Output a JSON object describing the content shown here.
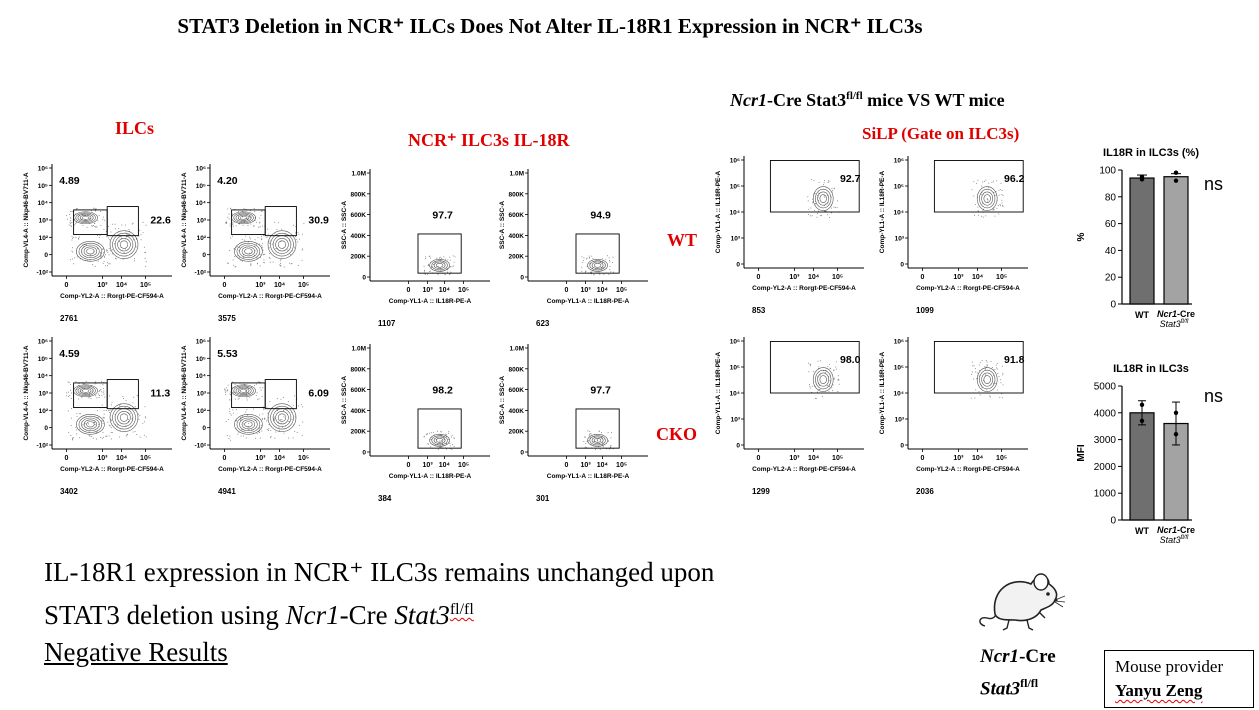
{
  "title": "STAT3 Deletion in NCR⁺ ILCs Does Not Alter IL-18R1 Expression in NCR⁺ ILC3s",
  "labels": {
    "ilcs": "ILCs",
    "ncr_il18r": "NCR⁺ ILC3s  IL-18R",
    "comparison_a": "Ncr1",
    "comparison_b": "-Cre Stat3",
    "comparison_sup": "fl/fl",
    "comparison_c": " mice VS WT mice",
    "silp": "SiLP (Gate on ILC3s)",
    "wt": "WT",
    "cko": "CKO"
  },
  "flow_panels": [
    {
      "id": "ilc-wt-1",
      "ylabel": "Comp-VL4-A :: Nkp46-BV711-A",
      "xlabel": "Comp-YL2-A :: Rorgt-PE-CF594-A",
      "count": "2761",
      "gates": [
        "4.89",
        "22.6"
      ]
    },
    {
      "id": "ilc-wt-2",
      "ylabel": "Comp-VL4-A :: Nkp46-BV711-A",
      "xlabel": "Comp-YL2-A :: Rorgt-PE-CF594-A",
      "count": "3575",
      "gates": [
        "4.20",
        "30.9"
      ]
    },
    {
      "id": "ilc-cko-1",
      "ylabel": "Comp-VL4-A :: Nkp46-BV711-A",
      "xlabel": "Comp-YL2-A :: Rorgt-PE-CF594-A",
      "count": "3402",
      "gates": [
        "4.59",
        "11.3"
      ]
    },
    {
      "id": "ilc-cko-2",
      "ylabel": "Comp-VL4-A :: Nkp46-BV711-A",
      "xlabel": "Comp-YL2-A :: Rorgt-PE-CF594-A",
      "count": "4941",
      "gates": [
        "5.53",
        "6.09"
      ]
    },
    {
      "id": "ncr-wt-1",
      "ylabel": "SSC-A :: SSC-A",
      "xlabel": "Comp-YL1-A :: IL18R-PE-A",
      "count": "1107",
      "gates": [
        "97.7"
      ]
    },
    {
      "id": "ncr-wt-2",
      "ylabel": "SSC-A :: SSC-A",
      "xlabel": "Comp-YL1-A :: IL18R-PE-A",
      "count": "623",
      "gates": [
        "94.9"
      ]
    },
    {
      "id": "ncr-cko-1",
      "ylabel": "SSC-A :: SSC-A",
      "xlabel": "Comp-YL1-A :: IL18R-PE-A",
      "count": "384",
      "gates": [
        "98.2"
      ]
    },
    {
      "id": "ncr-cko-2",
      "ylabel": "SSC-A :: SSC-A",
      "xlabel": "Comp-YL1-A :: IL18R-PE-A",
      "count": "301",
      "gates": [
        "97.7"
      ]
    },
    {
      "id": "silp-wt-1",
      "ylabel": "Comp-YL1-A :: IL18R-PE-A",
      "xlabel": "Comp-YL2-A :: Rorgt-PE-CF594-A",
      "count": "853",
      "gates": [
        "92.7"
      ]
    },
    {
      "id": "silp-wt-2",
      "ylabel": "Comp-YL1-A :: IL18R-PE-A",
      "xlabel": "Comp-YL2-A :: Rorgt-PE-CF594-A",
      "count": "1099",
      "gates": [
        "96.2"
      ]
    },
    {
      "id": "silp-cko-1",
      "ylabel": "Comp-YL1-A :: IL18R-PE-A",
      "xlabel": "Comp-YL2-A :: Rorgt-PE-CF594-A",
      "count": "1299",
      "gates": [
        "98.0"
      ]
    },
    {
      "id": "silp-cko-2",
      "ylabel": "Comp-YL1-A :: IL18R-PE-A",
      "xlabel": "Comp-YL2-A :: Rorgt-PE-CF594-A",
      "count": "2036",
      "gates": [
        "91.8"
      ]
    }
  ],
  "axis_ticks": {
    "log_rorgt": [
      "0",
      "10³",
      "10⁴",
      "10⁵"
    ],
    "log_nkp": [
      "10⁶",
      "10⁵",
      "10⁴",
      "10³",
      "10²",
      "0",
      "-10²"
    ],
    "ssc": [
      "1.0M",
      "800K",
      "600K",
      "400K",
      "200K",
      "0"
    ],
    "log_il18r_x": [
      "0",
      "10³",
      "10⁴",
      "10⁵"
    ],
    "log_il18r_y": [
      "10⁶",
      "10⁵",
      "10⁴",
      "10³",
      "0"
    ]
  },
  "chart_data": [
    {
      "type": "bar",
      "title": "IL18R in ILC3s (%)",
      "ylabel": "%",
      "ylim": [
        0,
        100
      ],
      "yticks": [
        "0",
        "20",
        "40",
        "60",
        "80",
        "100"
      ],
      "categories": [
        "WT",
        "Ncr1-Cre Stat3fl/fl"
      ],
      "values": [
        94,
        95
      ],
      "points": [
        [
          95,
          93
        ],
        [
          98,
          92
        ]
      ],
      "annotation": "ns"
    },
    {
      "type": "bar",
      "title": "IL18R in ILC3s",
      "ylabel": "MFI",
      "ylim": [
        0,
        5000
      ],
      "yticks": [
        "0",
        "1000",
        "2000",
        "3000",
        "4000",
        "5000"
      ],
      "categories": [
        "WT",
        "Ncr1-Cre Stat3fl/fl"
      ],
      "values": [
        4000,
        3600
      ],
      "points": [
        [
          4300,
          3700
        ],
        [
          4000,
          3200
        ]
      ],
      "errors": [
        450,
        800
      ],
      "annotation": "ns"
    }
  ],
  "bar_cat_labels": {
    "wt": "WT",
    "cko_a": "Ncr1",
    "cko_b": "-Cre",
    "cko_c": "Stat3",
    "cko_sup": "fl/fl"
  },
  "summary": {
    "line1": "IL-18R1 expression in NCR⁺ ILC3s remains unchanged upon",
    "line2a": "STAT3 deletion using ",
    "line2b": "Ncr1",
    "line2c": "-Cre ",
    "line2d": "Stat3",
    "line2sup": "fl/fl",
    "line3": "Negative Results"
  },
  "mouse_label": {
    "a": "Ncr1",
    "b": "-Cre",
    "c": "Stat3",
    "sup": "fl/fl"
  },
  "provider": {
    "label": "Mouse provider",
    "name": "Yanyu Zeng"
  },
  "colors": {
    "accent_red": "#e00000",
    "bar_wt": "#6f6f6f",
    "bar_cko": "#a3a3a3"
  }
}
